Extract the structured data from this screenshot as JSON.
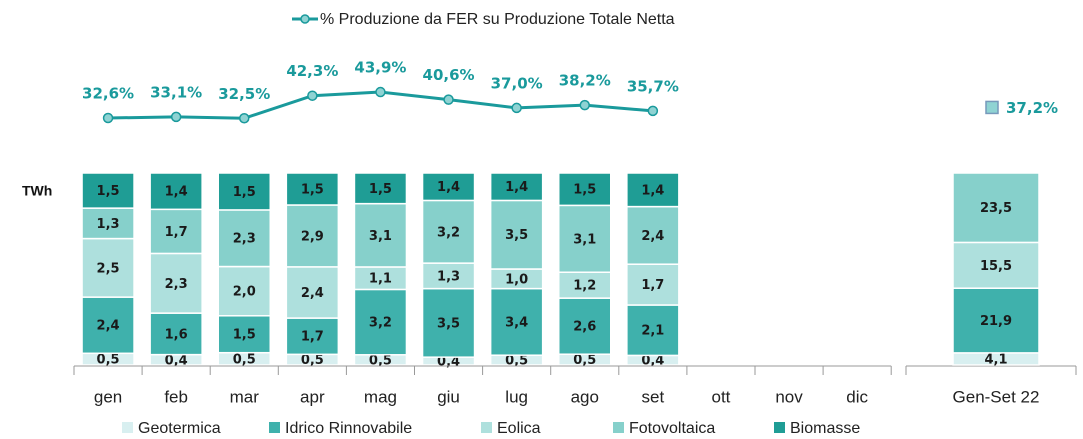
{
  "chart_data": {
    "type": "bar",
    "stacked": true,
    "y_label": "TWh",
    "categories": [
      "gen",
      "feb",
      "mar",
      "apr",
      "mag",
      "giu",
      "lug",
      "ago",
      "set",
      "ott",
      "nov",
      "dic"
    ],
    "series": [
      {
        "name": "Geotermica",
        "color": "#d8eff0",
        "values": [
          0.5,
          0.4,
          0.5,
          0.5,
          0.5,
          0.4,
          0.5,
          0.5,
          0.4,
          null,
          null,
          null
        ],
        "value_labels": [
          "0,5",
          "0,4",
          "0,5",
          "0,5",
          "0,5",
          "0,4",
          "0,5",
          "0,5",
          "0,4",
          null,
          null,
          null
        ]
      },
      {
        "name": "Idrico Rinnovabile",
        "color": "#3fb1ac",
        "values": [
          2.4,
          1.6,
          1.5,
          1.7,
          3.2,
          3.5,
          3.4,
          2.6,
          2.1,
          null,
          null,
          null
        ],
        "value_labels": [
          "2,4",
          "1,6",
          "1,5",
          "1,7",
          "3,2",
          "3,5",
          "3,4",
          "2,6",
          "2,1",
          null,
          null,
          null
        ]
      },
      {
        "name": "Eolica",
        "color": "#aee0dd",
        "values": [
          2.5,
          2.3,
          2.0,
          2.4,
          1.1,
          1.3,
          1.0,
          1.2,
          1.7,
          null,
          null,
          null
        ],
        "value_labels": [
          "2,5",
          "2,3",
          "2,0",
          "2,4",
          "1,1",
          "1,3",
          "1,0",
          "1,2",
          "1,7",
          null,
          null,
          null
        ]
      },
      {
        "name": "Fotovoltaica",
        "color": "#86d0cb",
        "values": [
          1.3,
          1.7,
          2.3,
          2.9,
          3.1,
          3.2,
          3.5,
          3.1,
          2.4,
          null,
          null,
          null
        ],
        "value_labels": [
          "1,3",
          "1,7",
          "2,3",
          "2,9",
          "3,1",
          "3,2",
          "3,5",
          "3,1",
          "2,4",
          null,
          null,
          null
        ]
      },
      {
        "name": "Biomasse",
        "color": "#1f9d95",
        "values": [
          1.5,
          1.4,
          1.5,
          1.5,
          1.5,
          1.4,
          1.4,
          1.5,
          1.4,
          null,
          null,
          null
        ],
        "value_labels": [
          "1,5",
          "1,4",
          "1,5",
          "1,5",
          "1,5",
          "1,4",
          "1,4",
          "1,5",
          "1,4",
          null,
          null,
          null
        ]
      }
    ],
    "line": {
      "name": "% Produzione da FER su Produzione Totale Netta",
      "color": "#1a9a9c",
      "values": [
        32.6,
        33.1,
        32.5,
        42.3,
        43.9,
        40.6,
        37.0,
        38.2,
        35.7,
        null,
        null,
        null
      ],
      "value_labels": [
        "32,6%",
        "33,1%",
        "32,5%",
        "42,3%",
        "43,9%",
        "40,6%",
        "37,0%",
        "38,2%",
        "35,7%",
        null,
        null,
        null
      ]
    },
    "summary": {
      "category": "Gen-Set 22",
      "values": [
        4.1,
        21.9,
        15.5,
        23.5,
        null
      ],
      "value_labels": [
        "4,1",
        "21,9",
        "15,5",
        "23,5",
        null
      ],
      "line_value": 37.2,
      "line_label": "37,2%"
    }
  }
}
